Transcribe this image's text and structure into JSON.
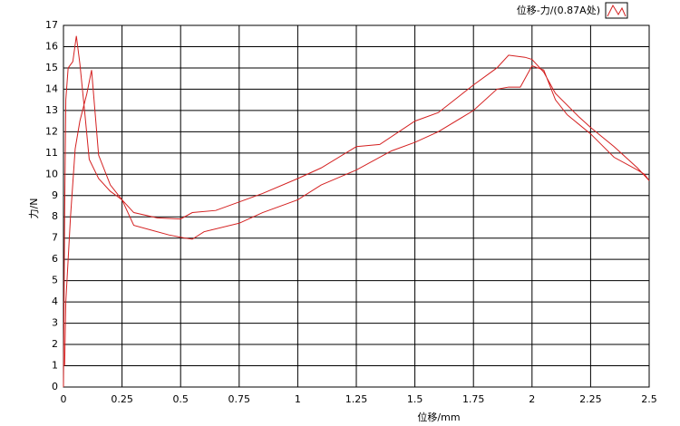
{
  "chart_data": {
    "type": "line",
    "x_label": "位移/mm",
    "y_label": "力/N",
    "xlim": [
      0,
      2.5
    ],
    "ylim": [
      0,
      17
    ],
    "xticks": [
      0,
      0.25,
      0.5,
      0.75,
      1,
      1.25,
      1.5,
      1.75,
      2,
      2.25,
      2.5
    ],
    "yticks": [
      0,
      1,
      2,
      3,
      4,
      5,
      6,
      7,
      8,
      9,
      10,
      11,
      12,
      13,
      14,
      15,
      16,
      17
    ],
    "grid": true,
    "legend": "top-right",
    "series": [
      {
        "name": "位移-力/(0.87A处)",
        "color": "#d42020",
        "x": [
          0,
          0.005,
          0.01,
          0.02,
          0.04,
          0.055,
          0.07,
          0.09,
          0.11,
          0.15,
          0.2,
          0.25,
          0.3,
          0.4,
          0.5,
          0.55,
          0.65,
          0.75,
          0.85,
          1.0,
          1.1,
          1.25,
          1.35,
          1.5,
          1.6,
          1.75,
          1.85,
          1.9,
          1.97,
          2.0,
          2.05,
          2.1,
          2.2,
          2.25,
          2.35,
          2.45,
          2.5,
          2.48,
          2.45,
          2.35,
          2.25,
          2.15,
          2.1,
          2.05,
          2.0,
          1.95,
          1.9,
          1.85,
          1.75,
          1.6,
          1.5,
          1.4,
          1.25,
          1.1,
          1.0,
          0.85,
          0.75,
          0.6,
          0.55,
          0.52,
          0.45,
          0.3,
          0.25,
          0.2,
          0.15,
          0.12,
          0.1,
          0.07,
          0.05,
          0.03,
          0.02,
          0.01,
          0.005
        ],
        "values": [
          0,
          8,
          13.5,
          15,
          15.3,
          16.5,
          15.2,
          13,
          10.7,
          9.8,
          9.2,
          8.8,
          8.2,
          7.95,
          7.9,
          8.2,
          8.3,
          8.7,
          9.1,
          9.8,
          10.3,
          11.3,
          11.4,
          12.5,
          12.9,
          14.2,
          15,
          15.6,
          15.5,
          15.4,
          14.8,
          13.8,
          12.7,
          12.2,
          11.3,
          10.3,
          9.7,
          10,
          10.2,
          10.8,
          11.9,
          12.8,
          13.5,
          14.9,
          15.1,
          14.1,
          14.1,
          14,
          13,
          12,
          11.5,
          11.1,
          10.2,
          9.5,
          8.8,
          8.2,
          7.7,
          7.3,
          6.95,
          7.0,
          7.15,
          7.6,
          8.8,
          9.5,
          10.9,
          14.9,
          13.8,
          12.5,
          11.2,
          8,
          6,
          4,
          1
        ]
      }
    ]
  }
}
